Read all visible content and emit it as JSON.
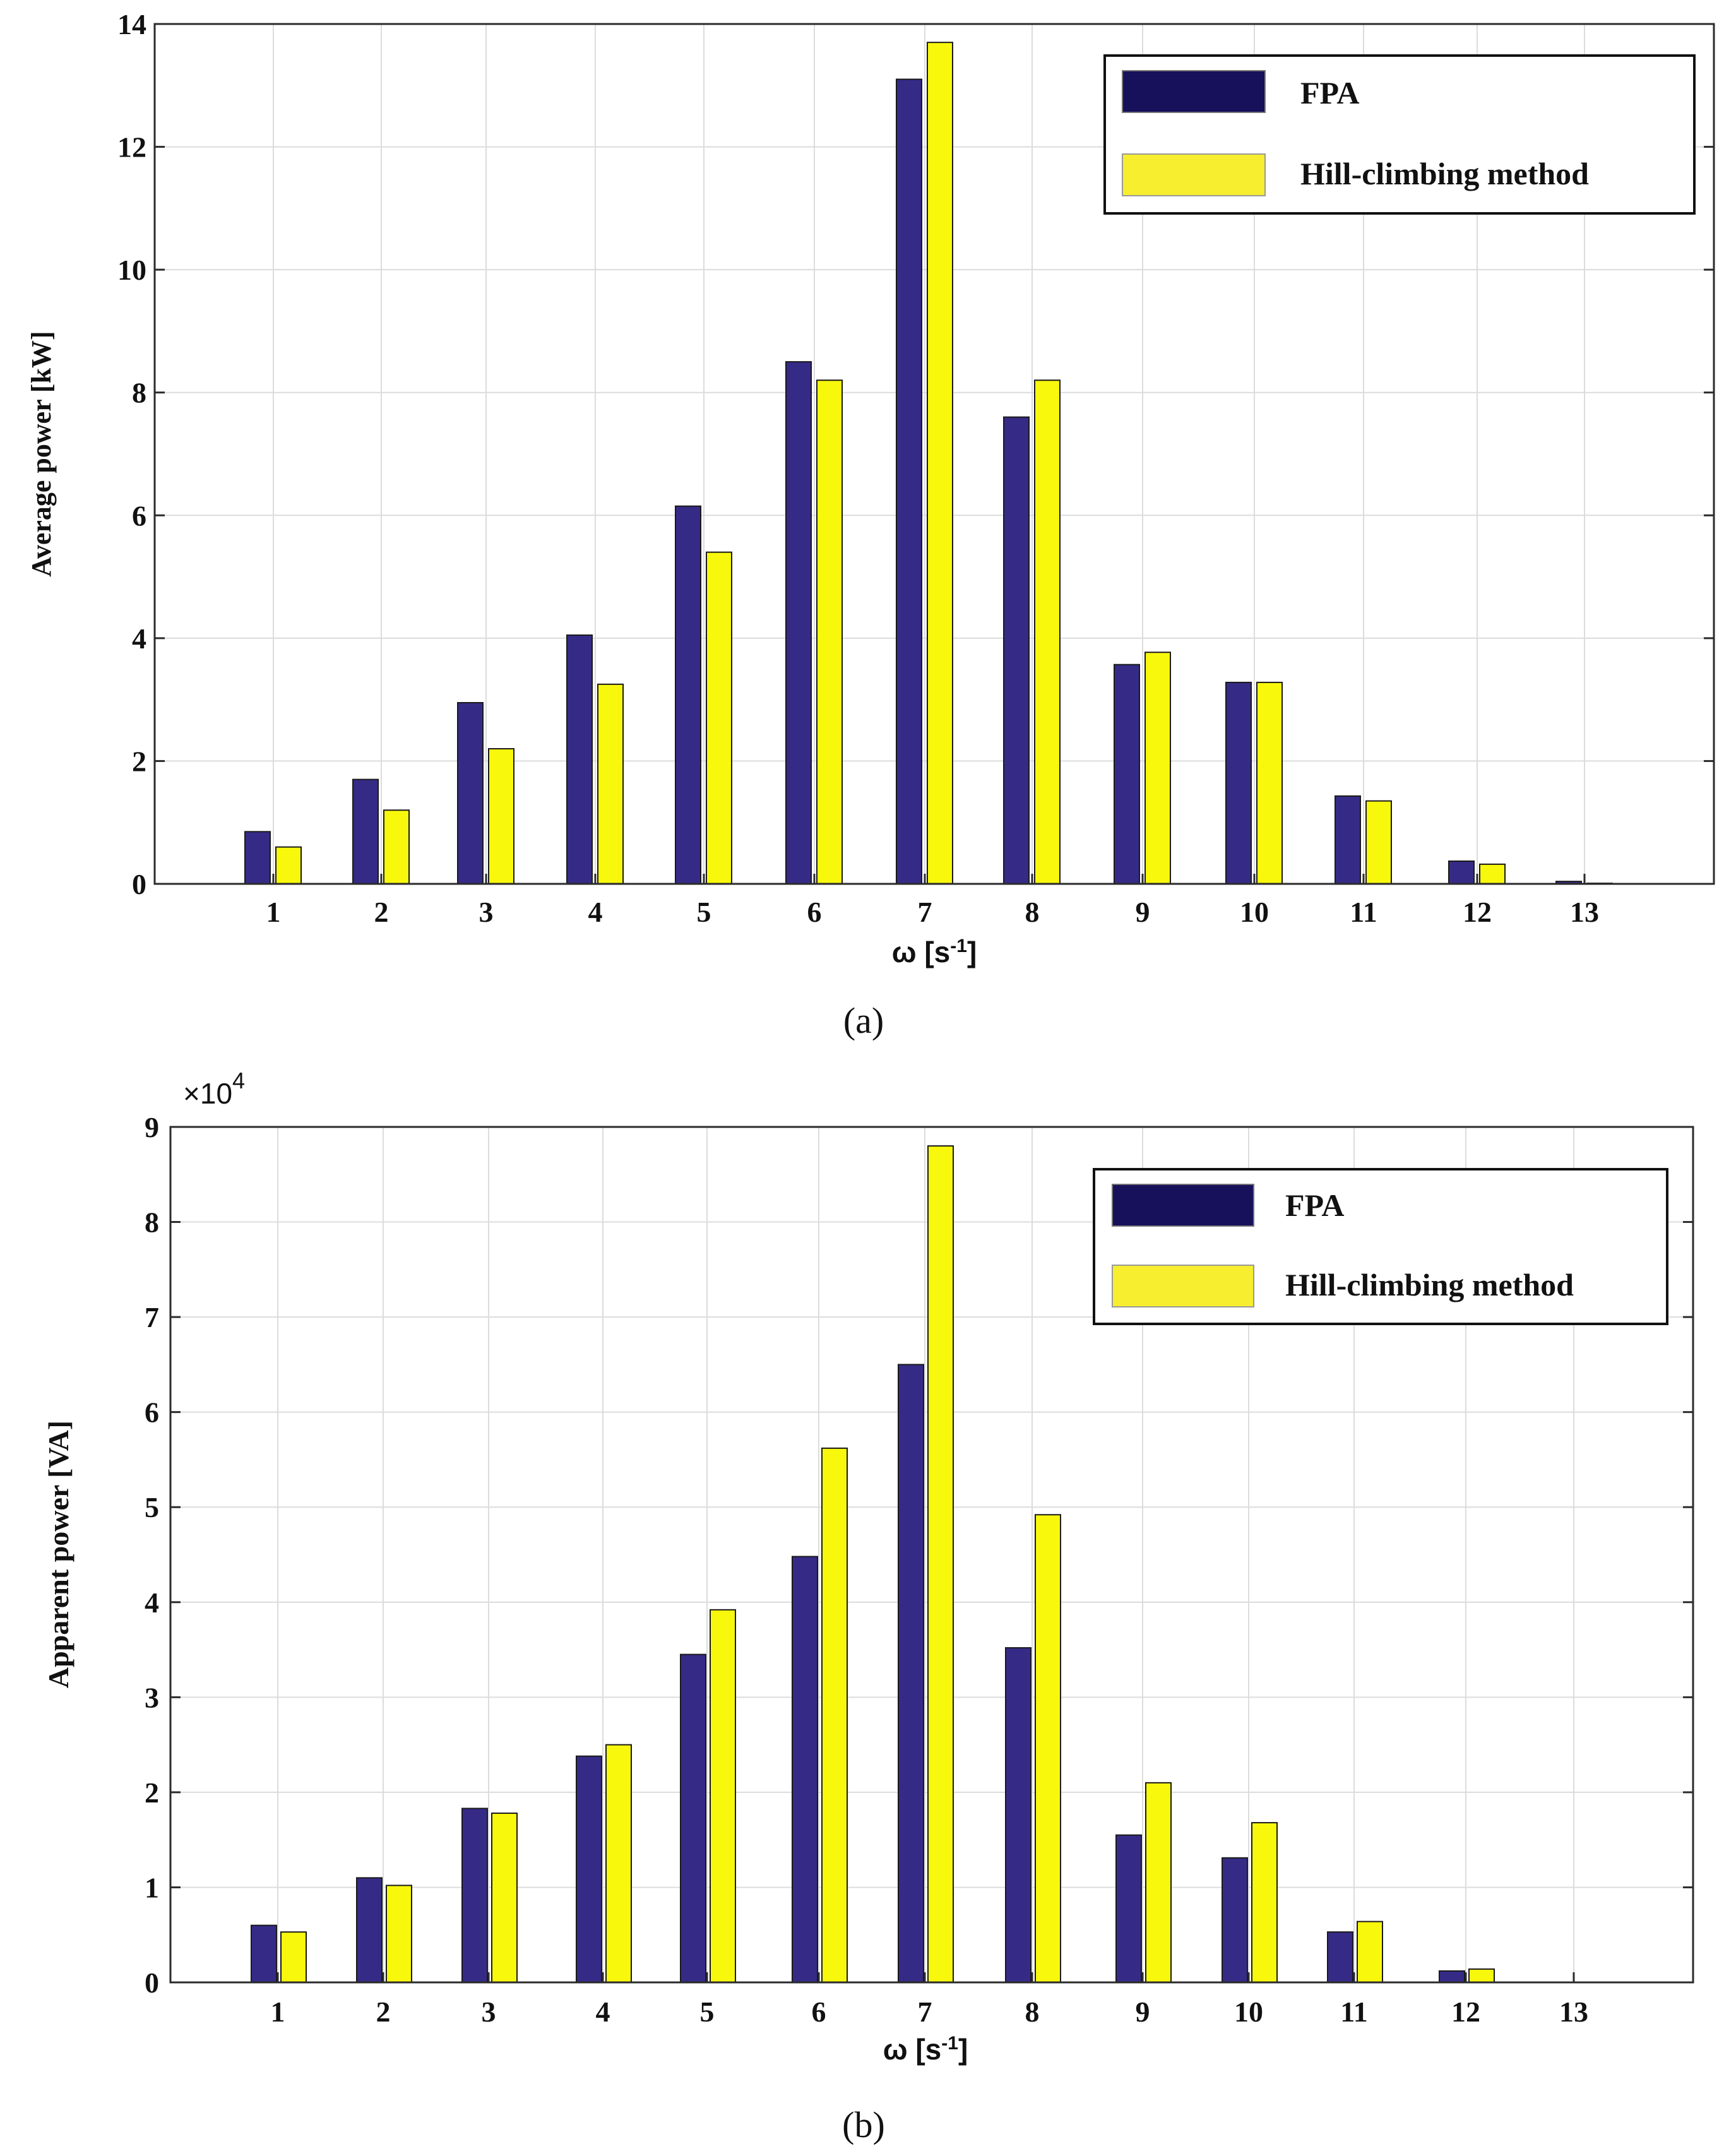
{
  "colors": {
    "fpa": "#352b87",
    "fpa_legend": "#17105b",
    "hill": "#f8f80c",
    "hill_legend": "#f6ee2e",
    "grid": "#dcdcdc",
    "axis": "#2b2b2b"
  },
  "panels": [
    {
      "caption": "(a)",
      "legend": {
        "fpa": "FPA",
        "hill": "Hill-climbing method"
      }
    },
    {
      "caption": "(b)",
      "legend": {
        "fpa": "FPA",
        "hill": "Hill-climbing method"
      }
    }
  ],
  "chart_data": [
    {
      "type": "bar",
      "title": "",
      "xlabel": "ω [s-1]",
      "xlabel_main": "ω [s",
      "xlabel_sup": "-1",
      "xlabel_end": "]",
      "ylabel": "Average power [kW]",
      "ylim": [
        0,
        14
      ],
      "yticks": [
        "0",
        "2",
        "4",
        "6",
        "8",
        "10",
        "12",
        "14"
      ],
      "categories": [
        "1",
        "2",
        "3",
        "4",
        "5",
        "6",
        "7",
        "8",
        "9",
        "10",
        "11",
        "12",
        "13"
      ],
      "legend_position": "top-right",
      "grid": true,
      "series": [
        {
          "name": "FPA",
          "values": [
            0.85,
            1.7,
            2.95,
            4.05,
            6.15,
            8.5,
            13.1,
            7.6,
            3.57,
            3.28,
            1.43,
            0.37,
            0.04
          ]
        },
        {
          "name": "Hill-climbing method",
          "values": [
            0.6,
            1.2,
            2.2,
            3.25,
            5.4,
            8.2,
            13.7,
            8.2,
            3.77,
            3.28,
            1.35,
            0.32,
            0.01
          ]
        }
      ]
    },
    {
      "type": "bar",
      "title": "",
      "xlabel": "ω [s-1]",
      "xlabel_main": "ω [s",
      "xlabel_sup": "-1",
      "xlabel_end": "]",
      "ylabel": "Apparent power [VA]",
      "multiplier_base": "×10",
      "multiplier_exp": "4",
      "ylim": [
        0,
        9
      ],
      "yticks": [
        "0",
        "1",
        "2",
        "3",
        "4",
        "5",
        "6",
        "7",
        "8",
        "9"
      ],
      "categories": [
        "1",
        "2",
        "3",
        "4",
        "5",
        "6",
        "7",
        "8",
        "9",
        "10",
        "11",
        "12",
        "13"
      ],
      "legend_position": "top-right",
      "grid": true,
      "series": [
        {
          "name": "FPA",
          "values": [
            0.6,
            1.1,
            1.83,
            2.38,
            3.45,
            4.48,
            6.5,
            3.52,
            1.55,
            1.31,
            0.53,
            0.12,
            0
          ]
        },
        {
          "name": "Hill-climbing method",
          "values": [
            0.53,
            1.02,
            1.78,
            2.5,
            3.92,
            5.62,
            8.8,
            4.92,
            2.1,
            1.68,
            0.64,
            0.14,
            0
          ]
        }
      ]
    }
  ]
}
